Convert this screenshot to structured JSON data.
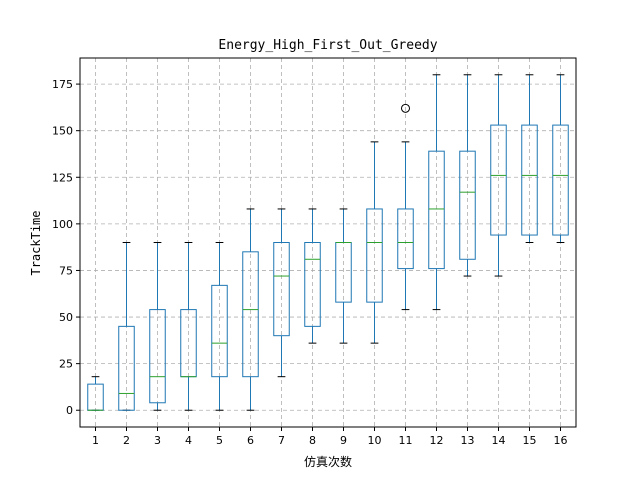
{
  "chart_data": {
    "type": "box",
    "title": "Energy_High_First_Out_Greedy",
    "xlabel": "仿真次数",
    "ylabel": "TrackTime",
    "ylim": [
      -9,
      189
    ],
    "yticks": [
      0,
      25,
      50,
      75,
      100,
      125,
      150,
      175
    ],
    "grid": true,
    "categories": [
      "1",
      "2",
      "3",
      "4",
      "5",
      "6",
      "7",
      "8",
      "9",
      "10",
      "11",
      "12",
      "13",
      "14",
      "15",
      "16"
    ],
    "boxes": [
      {
        "whislo": 0,
        "q1": 0,
        "med": 0,
        "q3": 14,
        "whishi": 18,
        "fliers": []
      },
      {
        "whislo": 0,
        "q1": 0,
        "med": 9,
        "q3": 45,
        "whishi": 90,
        "fliers": []
      },
      {
        "whislo": 0,
        "q1": 4,
        "med": 18,
        "q3": 54,
        "whishi": 90,
        "fliers": []
      },
      {
        "whislo": 0,
        "q1": 18,
        "med": 18,
        "q3": 54,
        "whishi": 90,
        "fliers": []
      },
      {
        "whislo": 0,
        "q1": 18,
        "med": 36,
        "q3": 67,
        "whishi": 90,
        "fliers": []
      },
      {
        "whislo": 0,
        "q1": 18,
        "med": 54,
        "q3": 85,
        "whishi": 108,
        "fliers": []
      },
      {
        "whislo": 18,
        "q1": 40,
        "med": 72,
        "q3": 90,
        "whishi": 108,
        "fliers": []
      },
      {
        "whislo": 36,
        "q1": 45,
        "med": 81,
        "q3": 90,
        "whishi": 108,
        "fliers": []
      },
      {
        "whislo": 36,
        "q1": 58,
        "med": 90,
        "q3": 90,
        "whishi": 108,
        "fliers": []
      },
      {
        "whislo": 36,
        "q1": 58,
        "med": 90,
        "q3": 108,
        "whishi": 144,
        "fliers": []
      },
      {
        "whislo": 54,
        "q1": 76,
        "med": 90,
        "q3": 108,
        "whishi": 144,
        "fliers": [
          162
        ]
      },
      {
        "whislo": 54,
        "q1": 76,
        "med": 108,
        "q3": 139,
        "whishi": 180,
        "fliers": []
      },
      {
        "whislo": 72,
        "q1": 81,
        "med": 117,
        "q3": 139,
        "whishi": 180,
        "fliers": []
      },
      {
        "whislo": 72,
        "q1": 94,
        "med": 126,
        "q3": 153,
        "whishi": 180,
        "fliers": []
      },
      {
        "whislo": 90,
        "q1": 94,
        "med": 126,
        "q3": 153,
        "whishi": 180,
        "fliers": []
      },
      {
        "whislo": 90,
        "q1": 94,
        "med": 126,
        "q3": 153,
        "whishi": 180,
        "fliers": []
      }
    ],
    "colors": {
      "box": "#1f77b4",
      "median": "#2ca02c",
      "grid": "#b0b0b0"
    }
  }
}
